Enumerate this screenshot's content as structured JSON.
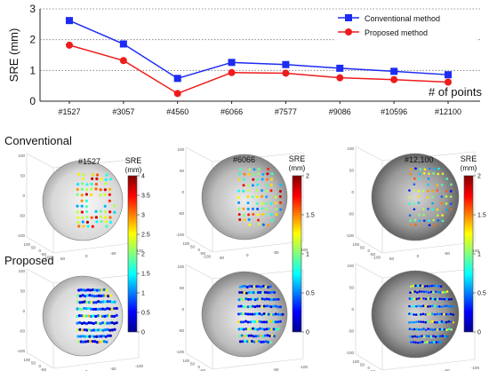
{
  "chart_data": [
    {
      "type": "line",
      "ylabel": "SRE (mm)",
      "xlabel": "# of points",
      "ylim": [
        0,
        3
      ],
      "yticks": [
        "0",
        "1",
        "2",
        "3"
      ],
      "categories": [
        "#1527",
        "#3057",
        "#4560",
        "#6066",
        "#7577",
        "#9086",
        "#10596",
        "#12100"
      ],
      "grid": "horizontal-dotted",
      "legend_position": "top-right",
      "series": [
        {
          "name": "Conventional method",
          "color": "#1c2cf2",
          "marker": "square",
          "values": [
            2.62,
            1.86,
            0.74,
            1.26,
            1.19,
            1.07,
            0.97,
            0.86
          ]
        },
        {
          "name": "Proposed method",
          "color": "#ee1c1c",
          "marker": "circle",
          "values": [
            1.82,
            1.32,
            0.25,
            0.93,
            0.91,
            0.76,
            0.7,
            0.62
          ]
        }
      ]
    },
    {
      "type": "scatter",
      "groups": {
        "conventional": "Conventional",
        "proposed": "Proposed"
      },
      "panel_titles": [
        "#1527",
        "#6066",
        "#12,100"
      ],
      "colorbar_title": [
        "SRE",
        "(mm)"
      ],
      "colorbars": [
        {
          "max": 4,
          "ticks": [
            "0",
            "0.5",
            "1",
            "1.5",
            "2",
            "2.5",
            "3",
            "3.5",
            "4"
          ]
        },
        {
          "max": 2,
          "ticks": [
            "0",
            "0.5",
            "1",
            "1.5",
            "2"
          ]
        },
        {
          "max": 2,
          "ticks": [
            "0",
            "0.5",
            "1",
            "1.5",
            "2"
          ]
        }
      ],
      "axis_tick_labels": {
        "vertical": [
          "100",
          "50",
          "0",
          "-50",
          "-100"
        ],
        "depth": [
          "100",
          "50",
          "0",
          "-50",
          "-100"
        ],
        "width": [
          "50",
          "0",
          "-50",
          "-100"
        ]
      }
    }
  ]
}
